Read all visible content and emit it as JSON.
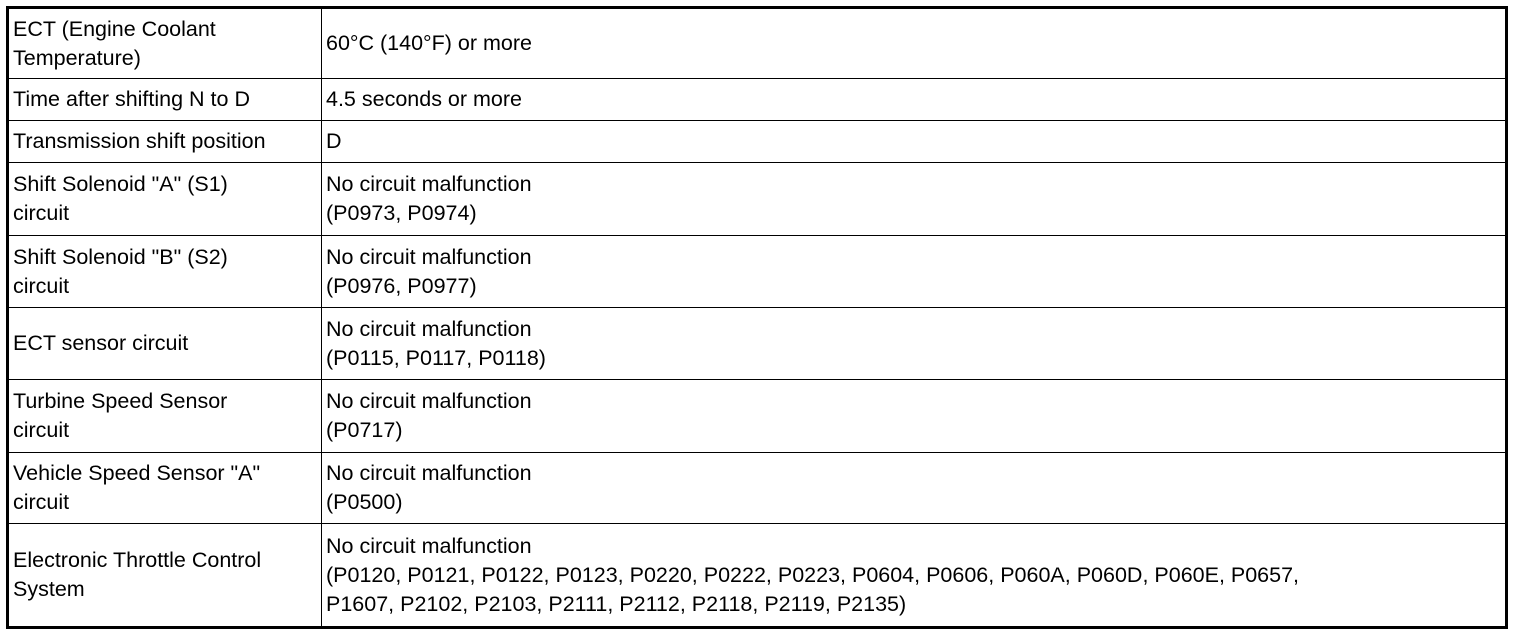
{
  "table": {
    "rows": [
      [
        [
          "ECT (Engine Coolant",
          "Temperature)"
        ],
        [
          "60°C (140°F) or more"
        ]
      ],
      [
        [
          "Time after shifting N to D"
        ],
        [
          "4.5 seconds or more"
        ]
      ],
      [
        [
          "Transmission shift position"
        ],
        [
          "D"
        ]
      ],
      [
        [
          "Shift Solenoid \"A\" (S1)",
          "circuit"
        ],
        [
          "No circuit malfunction",
          "(P0973, P0974)"
        ]
      ],
      [
        [
          "Shift Solenoid \"B\" (S2)",
          "circuit"
        ],
        [
          "No circuit malfunction",
          "(P0976, P0977)"
        ]
      ],
      [
        [
          "ECT sensor circuit"
        ],
        [
          "No circuit malfunction",
          "(P0115, P0117, P0118)"
        ]
      ],
      [
        [
          "Turbine Speed Sensor",
          "circuit"
        ],
        [
          "No circuit malfunction",
          "(P0717)"
        ]
      ],
      [
        [
          "Vehicle Speed Sensor \"A\"",
          "circuit"
        ],
        [
          "No circuit malfunction",
          "(P0500)"
        ]
      ],
      [
        [
          "Electronic Throttle Control",
          "System"
        ],
        [
          "No circuit malfunction",
          "(P0120, P0121, P0122, P0123, P0220, P0222, P0223, P0604, P0606, P060A, P060D, P060E, P0657,",
          "P1607, P2102, P2103, P2111, P2112, P2118, P2119, P2135)"
        ]
      ]
    ]
  }
}
